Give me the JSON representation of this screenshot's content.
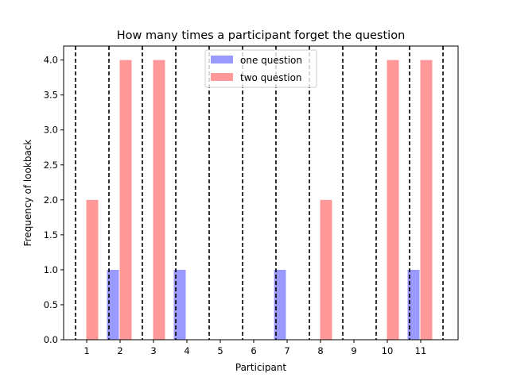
{
  "chart_data": {
    "type": "bar",
    "title": "How many times a participant forget the question",
    "xlabel": "Participant",
    "ylabel": "Frequency of lookback",
    "categories": [
      "1",
      "2",
      "3",
      "4",
      "5",
      "6",
      "7",
      "8",
      "9",
      "10",
      "11"
    ],
    "series": [
      {
        "name": "one question",
        "color": "#9999ff",
        "values": [
          0,
          1,
          0,
          1,
          0,
          0,
          1,
          0,
          0,
          0,
          1
        ]
      },
      {
        "name": "two question",
        "color": "#ff9999",
        "values": [
          2,
          4,
          4,
          0,
          0,
          0,
          0,
          2,
          0,
          4,
          4
        ]
      }
    ],
    "ylim": [
      0,
      4.2
    ],
    "yticks": [
      "0.0",
      "0.5",
      "1.0",
      "1.5",
      "2.0",
      "2.5",
      "3.0",
      "3.5",
      "4.0"
    ],
    "separators": "dashed vertical lines between participants",
    "legend": "top-center",
    "grid": false
  }
}
